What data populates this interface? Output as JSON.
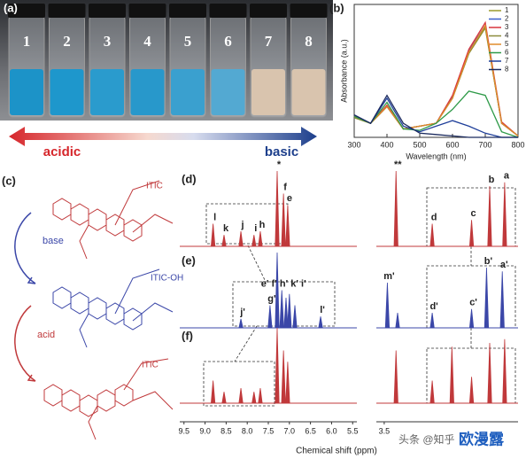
{
  "figure": {
    "a": {
      "label": "(a)",
      "vials": [
        "1",
        "2",
        "3",
        "4",
        "5",
        "6",
        "7",
        "8"
      ],
      "left": "acidic",
      "right": "basic"
    },
    "b": {
      "label": "(b)"
    },
    "c": {
      "label": "(c)",
      "top": "ITIC",
      "middle": "ITIC-OH",
      "bottom": "ITIC",
      "down": "base",
      "up": "acid"
    },
    "watermark": "头条 @知乎",
    "brand": "欧漫露"
  },
  "chart_data": [
    {
      "type": "line",
      "xlabel": "Wavelength (nm)",
      "ylabel": "Absorbance (a.u.)",
      "x": [
        300,
        350,
        400,
        450,
        500,
        550,
        600,
        650,
        700,
        750,
        800
      ],
      "xlim": [
        300,
        800
      ],
      "xticks": [
        300,
        400,
        500,
        600,
        700,
        800
      ],
      "ylim": [
        0,
        0.95
      ],
      "series": [
        {
          "name": "1",
          "color": "#9a9a2a",
          "values": [
            0.15,
            0.1,
            0.22,
            0.06,
            0.08,
            0.1,
            0.28,
            0.6,
            0.78,
            0.1,
            0.01
          ]
        },
        {
          "name": "2",
          "color": "#3a5fcd",
          "values": [
            0.15,
            0.1,
            0.22,
            0.06,
            0.08,
            0.1,
            0.29,
            0.62,
            0.8,
            0.1,
            0.01
          ]
        },
        {
          "name": "3",
          "color": "#d9363e",
          "values": [
            0.15,
            0.1,
            0.23,
            0.06,
            0.08,
            0.1,
            0.3,
            0.63,
            0.82,
            0.11,
            0.01
          ]
        },
        {
          "name": "4",
          "color": "#8c8c3c",
          "values": [
            0.14,
            0.1,
            0.22,
            0.06,
            0.08,
            0.1,
            0.28,
            0.6,
            0.79,
            0.1,
            0.01
          ]
        },
        {
          "name": "5",
          "color": "#e08a2a",
          "values": [
            0.15,
            0.1,
            0.22,
            0.06,
            0.08,
            0.1,
            0.28,
            0.61,
            0.8,
            0.1,
            0.01
          ]
        },
        {
          "name": "6",
          "color": "#2e9a48",
          "values": [
            0.15,
            0.1,
            0.25,
            0.06,
            0.05,
            0.1,
            0.2,
            0.33,
            0.3,
            0.04,
            0
          ]
        },
        {
          "name": "7",
          "color": "#1f3f9a",
          "values": [
            0.16,
            0.1,
            0.28,
            0.08,
            0.04,
            0.08,
            0.12,
            0.08,
            0.03,
            0,
            0
          ]
        },
        {
          "name": "8",
          "color": "#1b2a5e",
          "values": [
            0.16,
            0.1,
            0.3,
            0.1,
            0.03,
            0.02,
            0.01,
            0,
            0,
            0,
            0
          ]
        }
      ]
    },
    {
      "type": "nmr",
      "xlabel": "Chemical shift (ppm)",
      "xlim": [
        9.6,
        5.4
      ],
      "xticks": [
        9.5,
        {
          "value": 9,
          "label": "9.0"
        },
        8.5,
        {
          "value": 8,
          "label": "8.0"
        },
        7.5,
        {
          "value": 7,
          "label": "7.0"
        },
        6.5,
        {
          "value": 6,
          "label": "6.0"
        },
        5.5
      ],
      "xlim2": [
        3.6,
        1.8
      ],
      "xticks2": [
        3.5
      ],
      "spectra": [
        {
          "label": "(d)",
          "color": "#c0393b",
          "peaks": [
            {
              "ppm": 8.81,
              "height": 0.3,
              "label": "l"
            },
            {
              "ppm": 8.55,
              "height": 0.15,
              "label": "k"
            },
            {
              "ppm": 8.15,
              "height": 0.2,
              "label": "j"
            },
            {
              "ppm": 7.84,
              "height": 0.15,
              "label": "i"
            },
            {
              "ppm": 7.69,
              "height": 0.2,
              "label": "h"
            },
            {
              "ppm": 7.29,
              "height": 1.0,
              "label": "*"
            },
            {
              "ppm": 7.14,
              "height": 0.7,
              "label": "f"
            },
            {
              "ppm": 7.04,
              "height": 0.55,
              "label": "e"
            }
          ],
          "peaks2": [
            {
              "ppm": 3.35,
              "height": 1.0,
              "label": "**"
            },
            {
              "ppm": 2.89,
              "height": 0.3,
              "label": "d"
            },
            {
              "ppm": 2.39,
              "height": 0.35,
              "label": "c"
            },
            {
              "ppm": 2.16,
              "height": 0.8,
              "label": "b"
            },
            {
              "ppm": 1.97,
              "height": 0.85,
              "label": "a"
            }
          ]
        },
        {
          "label": "(e)",
          "color": "#3b47a8",
          "peaks": [
            {
              "ppm": 8.15,
              "height": 0.12,
              "label": "j'"
            },
            {
              "ppm": 7.46,
              "height": 0.3,
              "label": "g'"
            },
            {
              "ppm": 7.29,
              "height": 1.0
            },
            {
              "ppm": 7.18,
              "height": 0.5,
              "label": "e' f' h' k' i'"
            },
            {
              "ppm": 7.08,
              "height": 0.4
            },
            {
              "ppm": 7.0,
              "height": 0.45
            },
            {
              "ppm": 6.87,
              "height": 0.3
            },
            {
              "ppm": 6.26,
              "height": 0.15,
              "label": "l'"
            }
          ],
          "peaks2": [
            {
              "ppm": 3.46,
              "height": 0.6,
              "label": "m'"
            },
            {
              "ppm": 3.33,
              "height": 0.2
            },
            {
              "ppm": 2.89,
              "height": 0.2,
              "label": "d'"
            },
            {
              "ppm": 2.39,
              "height": 0.25,
              "label": "c'"
            },
            {
              "ppm": 2.2,
              "height": 0.8,
              "label": "b'"
            },
            {
              "ppm": 2.0,
              "height": 0.75,
              "label": "a'"
            }
          ]
        },
        {
          "label": "(f)",
          "color": "#c0393b",
          "peaks": [
            {
              "ppm": 8.81,
              "height": 0.3
            },
            {
              "ppm": 8.55,
              "height": 0.15
            },
            {
              "ppm": 8.15,
              "height": 0.2
            },
            {
              "ppm": 7.84,
              "height": 0.15
            },
            {
              "ppm": 7.69,
              "height": 0.2
            },
            {
              "ppm": 7.29,
              "height": 1.0
            },
            {
              "ppm": 7.14,
              "height": 0.7
            },
            {
              "ppm": 7.04,
              "height": 0.55
            }
          ],
          "peaks2": [
            {
              "ppm": 3.35,
              "height": 0.7
            },
            {
              "ppm": 2.89,
              "height": 0.3
            },
            {
              "ppm": 2.64,
              "height": 0.75
            },
            {
              "ppm": 2.39,
              "height": 0.35
            },
            {
              "ppm": 2.16,
              "height": 0.8
            },
            {
              "ppm": 1.97,
              "height": 0.85
            }
          ]
        }
      ]
    }
  ]
}
